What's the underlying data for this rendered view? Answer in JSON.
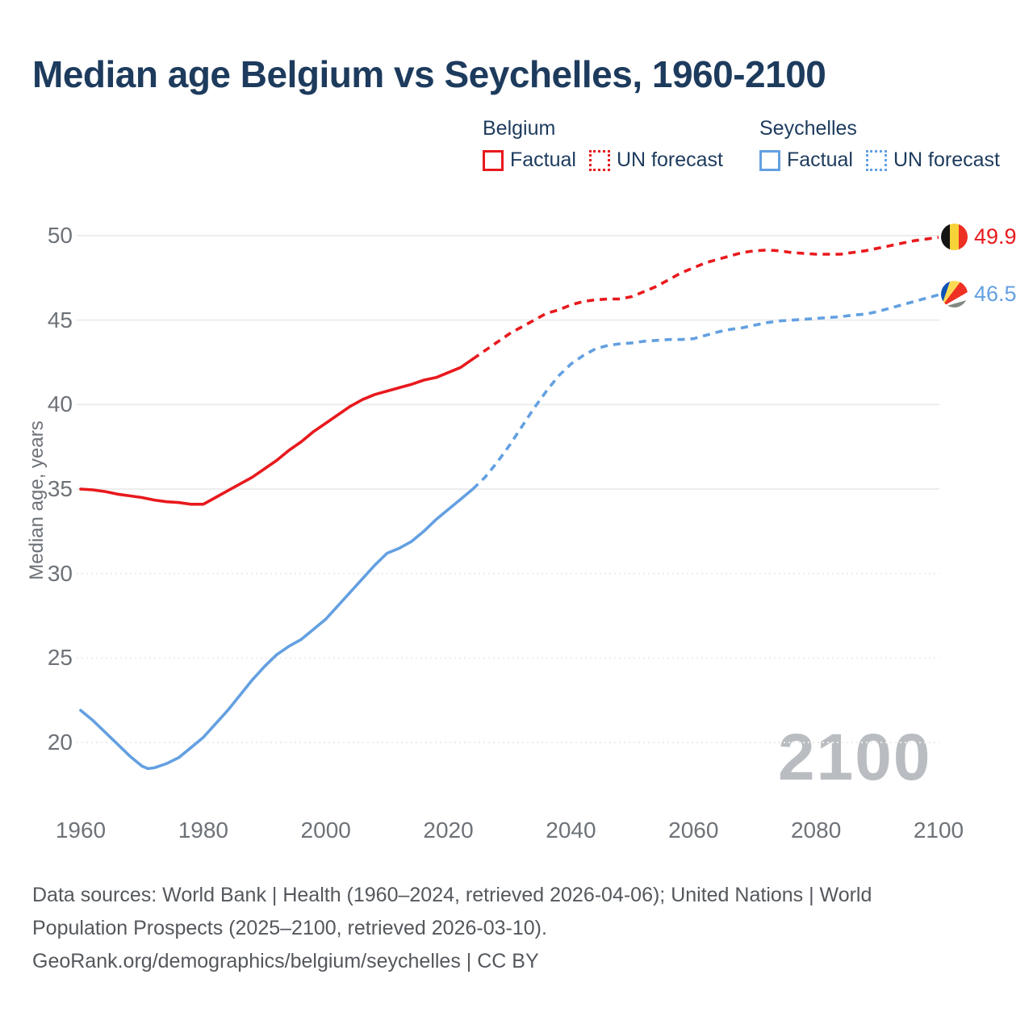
{
  "title": "Median age Belgium vs Seychelles, 1960-2100",
  "legend": {
    "groups": [
      {
        "name": "Belgium",
        "items": [
          {
            "label": "Factual",
            "style": "solid"
          },
          {
            "label": "UN forecast",
            "style": "dotted"
          }
        ]
      },
      {
        "name": "Seychelles",
        "items": [
          {
            "label": "Factual",
            "style": "solid"
          },
          {
            "label": "UN forecast",
            "style": "dotted"
          }
        ]
      }
    ]
  },
  "chart_data": {
    "type": "line",
    "title": "Median age Belgium vs Seychelles, 1960-2100",
    "xlabel": "",
    "ylabel": "Median age, years",
    "xlim": [
      1960,
      2100
    ],
    "ylim": [
      20,
      50
    ],
    "xticks": [
      1960,
      1980,
      2000,
      2020,
      2040,
      2060,
      2080,
      2100
    ],
    "yticks": [
      20,
      25,
      30,
      35,
      40,
      45,
      50
    ],
    "solid_gridlines": [
      35,
      40,
      45,
      50
    ],
    "grid": "on",
    "legend_position": "top-right",
    "watermark": "2100",
    "series": [
      {
        "name": "Belgium",
        "color": "#e8191d",
        "end_label": "49.9",
        "factual": [
          [
            1960,
            35.0
          ],
          [
            1962,
            34.95
          ],
          [
            1964,
            34.85
          ],
          [
            1966,
            34.7
          ],
          [
            1968,
            34.6
          ],
          [
            1970,
            34.5
          ],
          [
            1972,
            34.35
          ],
          [
            1974,
            34.25
          ],
          [
            1976,
            34.2
          ],
          [
            1978,
            34.1
          ],
          [
            1980,
            34.1
          ],
          [
            1982,
            34.5
          ],
          [
            1984,
            34.9
          ],
          [
            1986,
            35.3
          ],
          [
            1988,
            35.7
          ],
          [
            1990,
            36.2
          ],
          [
            1992,
            36.7
          ],
          [
            1994,
            37.3
          ],
          [
            1996,
            37.8
          ],
          [
            1998,
            38.4
          ],
          [
            2000,
            38.9
          ],
          [
            2002,
            39.4
          ],
          [
            2004,
            39.9
          ],
          [
            2006,
            40.3
          ],
          [
            2008,
            40.6
          ],
          [
            2010,
            40.8
          ],
          [
            2012,
            41.0
          ],
          [
            2014,
            41.2
          ],
          [
            2016,
            41.45
          ],
          [
            2018,
            41.6
          ],
          [
            2020,
            41.9
          ],
          [
            2022,
            42.2
          ],
          [
            2024,
            42.7
          ]
        ],
        "forecast": [
          [
            2024,
            42.7
          ],
          [
            2026,
            43.2
          ],
          [
            2028,
            43.7
          ],
          [
            2030,
            44.2
          ],
          [
            2032,
            44.6
          ],
          [
            2034,
            45.0
          ],
          [
            2036,
            45.4
          ],
          [
            2038,
            45.6
          ],
          [
            2040,
            45.9
          ],
          [
            2042,
            46.1
          ],
          [
            2044,
            46.2
          ],
          [
            2046,
            46.25
          ],
          [
            2048,
            46.25
          ],
          [
            2050,
            46.4
          ],
          [
            2052,
            46.7
          ],
          [
            2054,
            47.0
          ],
          [
            2056,
            47.4
          ],
          [
            2058,
            47.8
          ],
          [
            2060,
            48.1
          ],
          [
            2062,
            48.4
          ],
          [
            2064,
            48.6
          ],
          [
            2066,
            48.8
          ],
          [
            2068,
            49.0
          ],
          [
            2070,
            49.1
          ],
          [
            2072,
            49.15
          ],
          [
            2074,
            49.1
          ],
          [
            2076,
            49.0
          ],
          [
            2078,
            48.95
          ],
          [
            2080,
            48.9
          ],
          [
            2082,
            48.9
          ],
          [
            2084,
            48.9
          ],
          [
            2086,
            49.0
          ],
          [
            2088,
            49.1
          ],
          [
            2090,
            49.25
          ],
          [
            2092,
            49.4
          ],
          [
            2094,
            49.55
          ],
          [
            2096,
            49.7
          ],
          [
            2098,
            49.8
          ],
          [
            2100,
            49.9
          ]
        ]
      },
      {
        "name": "Seychelles",
        "color": "#63a0e1",
        "end_label": "46.5",
        "factual": [
          [
            1960,
            21.9
          ],
          [
            1962,
            21.3
          ],
          [
            1964,
            20.6
          ],
          [
            1966,
            19.9
          ],
          [
            1968,
            19.2
          ],
          [
            1970,
            18.6
          ],
          [
            1971,
            18.45
          ],
          [
            1972,
            18.5
          ],
          [
            1974,
            18.75
          ],
          [
            1976,
            19.1
          ],
          [
            1978,
            19.7
          ],
          [
            1980,
            20.3
          ],
          [
            1982,
            21.1
          ],
          [
            1984,
            21.9
          ],
          [
            1986,
            22.8
          ],
          [
            1988,
            23.7
          ],
          [
            1990,
            24.5
          ],
          [
            1992,
            25.2
          ],
          [
            1994,
            25.7
          ],
          [
            1996,
            26.1
          ],
          [
            1998,
            26.7
          ],
          [
            2000,
            27.3
          ],
          [
            2002,
            28.1
          ],
          [
            2004,
            28.9
          ],
          [
            2006,
            29.7
          ],
          [
            2008,
            30.5
          ],
          [
            2010,
            31.2
          ],
          [
            2012,
            31.5
          ],
          [
            2014,
            31.9
          ],
          [
            2016,
            32.5
          ],
          [
            2018,
            33.2
          ],
          [
            2020,
            33.8
          ],
          [
            2022,
            34.4
          ],
          [
            2024,
            35.0
          ]
        ],
        "forecast": [
          [
            2024,
            35.0
          ],
          [
            2026,
            35.7
          ],
          [
            2028,
            36.6
          ],
          [
            2030,
            37.6
          ],
          [
            2032,
            38.7
          ],
          [
            2034,
            39.8
          ],
          [
            2036,
            40.8
          ],
          [
            2038,
            41.7
          ],
          [
            2040,
            42.4
          ],
          [
            2042,
            42.9
          ],
          [
            2044,
            43.3
          ],
          [
            2046,
            43.5
          ],
          [
            2048,
            43.6
          ],
          [
            2050,
            43.65
          ],
          [
            2052,
            43.75
          ],
          [
            2054,
            43.8
          ],
          [
            2056,
            43.85
          ],
          [
            2058,
            43.85
          ],
          [
            2060,
            43.9
          ],
          [
            2062,
            44.1
          ],
          [
            2064,
            44.3
          ],
          [
            2066,
            44.45
          ],
          [
            2068,
            44.55
          ],
          [
            2070,
            44.7
          ],
          [
            2072,
            44.85
          ],
          [
            2074,
            44.95
          ],
          [
            2076,
            45.0
          ],
          [
            2078,
            45.05
          ],
          [
            2080,
            45.1
          ],
          [
            2082,
            45.15
          ],
          [
            2084,
            45.2
          ],
          [
            2086,
            45.3
          ],
          [
            2088,
            45.35
          ],
          [
            2090,
            45.5
          ],
          [
            2092,
            45.7
          ],
          [
            2094,
            45.9
          ],
          [
            2096,
            46.1
          ],
          [
            2098,
            46.3
          ],
          [
            2100,
            46.5
          ]
        ]
      }
    ]
  },
  "colors": {
    "title": "#1d3b5d",
    "belgium_line": "#e8191d",
    "seychelles_line": "#63a0e1",
    "tick_text": "#6d7278",
    "footer_text": "#54585c",
    "watermark": "#b9bdc1",
    "gridline": "#ededed"
  },
  "footer": {
    "lines": [
      "Data sources: World Bank | Health (1960–2024, retrieved 2026-04-06); United Nations | World",
      "Population Prospects (2025–2100, retrieved 2026-03-10).",
      "GeoRank.org/demographics/belgium/seychelles | CC BY"
    ]
  }
}
